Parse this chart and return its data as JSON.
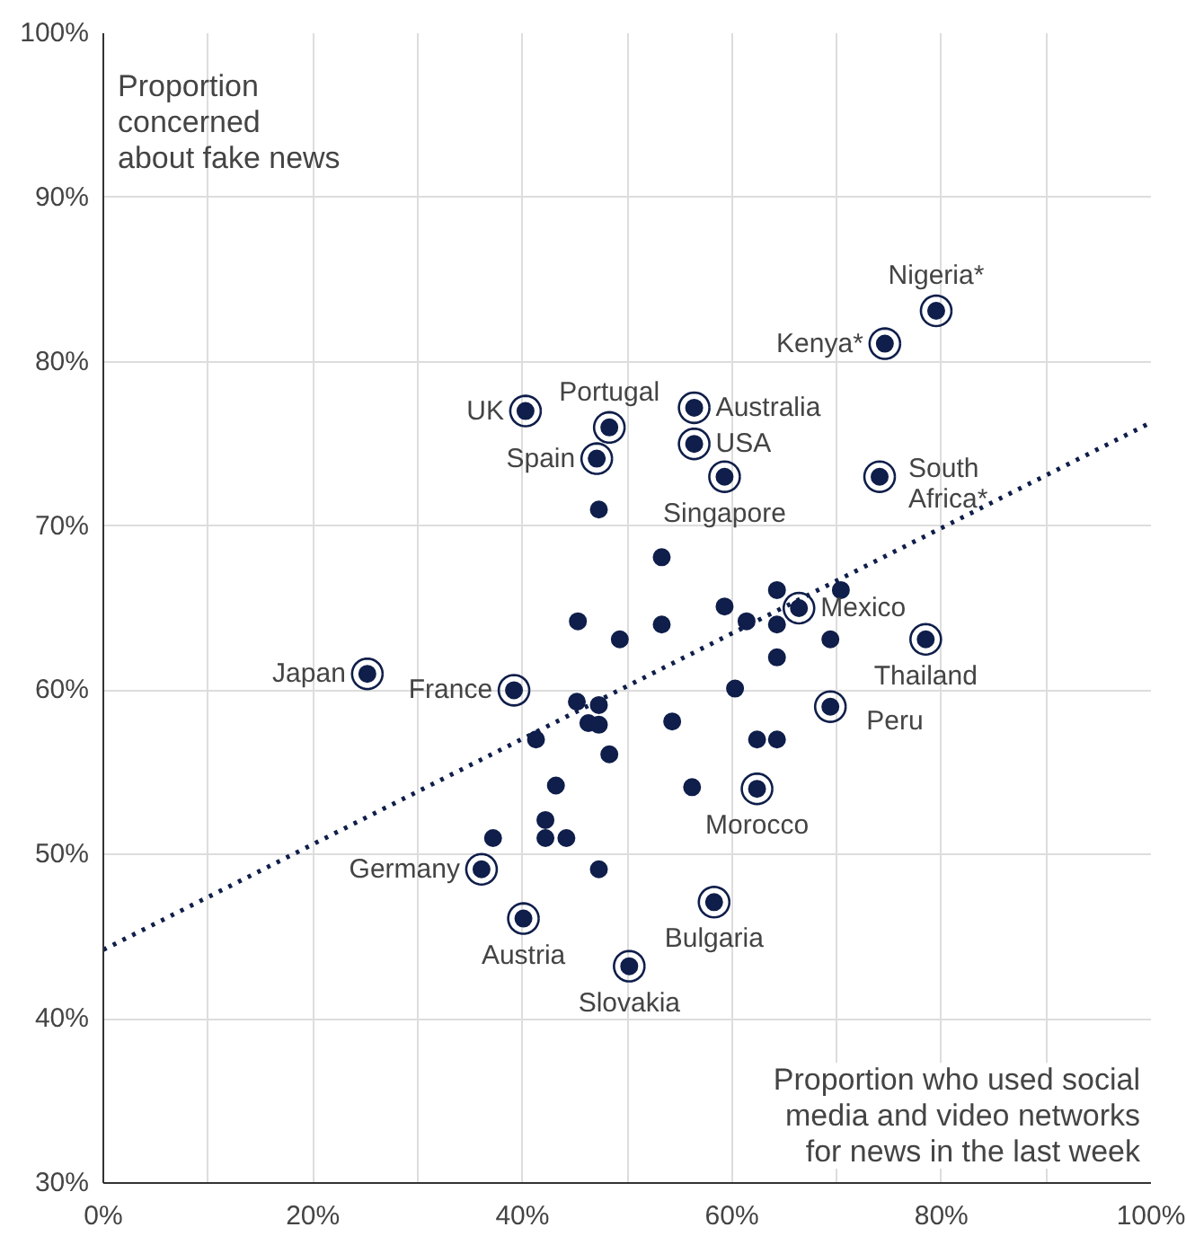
{
  "chart_data": {
    "type": "scatter",
    "xlabel": "Proportion who used social\nmedia and video networks\nfor news in the last week",
    "ylabel": "Proportion\nconcerned\nabout fake news",
    "xlim": [
      0,
      100
    ],
    "ylim": [
      30,
      100
    ],
    "xticks": [
      {
        "value": 0,
        "label": "0%"
      },
      {
        "value": 10,
        "label": null
      },
      {
        "value": 20,
        "label": "20%"
      },
      {
        "value": 30,
        "label": null
      },
      {
        "value": 40,
        "label": "40%"
      },
      {
        "value": 50,
        "label": null
      },
      {
        "value": 60,
        "label": "60%"
      },
      {
        "value": 70,
        "label": null
      },
      {
        "value": 80,
        "label": "80%"
      },
      {
        "value": 90,
        "label": null
      },
      {
        "value": 100,
        "label": "100%"
      }
    ],
    "yticks": [
      {
        "value": 30,
        "label": "30%"
      },
      {
        "value": 40,
        "label": "40%"
      },
      {
        "value": 50,
        "label": "50%"
      },
      {
        "value": 60,
        "label": "60%"
      },
      {
        "value": 70,
        "label": "70%"
      },
      {
        "value": 80,
        "label": "80%"
      },
      {
        "value": 90,
        "label": "90%"
      },
      {
        "value": 100,
        "label": "100%"
      }
    ],
    "grid": true,
    "series": [
      {
        "color": "#0f1e4a",
        "marker": "circle",
        "x": [
          47.3,
          53.3,
          45.3,
          53.3,
          49.3,
          45.2,
          47.3,
          46.3,
          47.3,
          54.3,
          41.3,
          48.3,
          43.2,
          56.2,
          37.2,
          42.2,
          42.2,
          44.2,
          47.3,
          62.4,
          64.3,
          59.3,
          64.3,
          70.4,
          61.4,
          64.3,
          69.4,
          64.3,
          60.3
        ],
        "values": [
          71.0,
          68.1,
          64.2,
          64.0,
          63.1,
          59.3,
          59.1,
          58.0,
          57.9,
          58.1,
          57.0,
          56.1,
          54.2,
          54.1,
          51.0,
          52.1,
          51.0,
          51.0,
          49.1,
          57.0,
          57.0,
          65.1,
          66.1,
          66.1,
          64.2,
          64.0,
          63.1,
          62.0,
          60.1
        ]
      },
      {
        "color": "#0f1e4a",
        "marker": "circle",
        "x": [
          40.3,
          48.3,
          47.1,
          56.4,
          56.4,
          59.3,
          79.5,
          74.6,
          74.1,
          66.4,
          78.5,
          69.4,
          62.4,
          25.2,
          39.2,
          36.1,
          40.1,
          50.2,
          58.3
        ],
        "values": [
          77.0,
          76.0,
          74.1,
          77.2,
          75.0,
          73.0,
          83.1,
          81.1,
          73.0,
          65.0,
          63.1,
          59.0,
          54.0,
          61.0,
          60.0,
          49.1,
          46.1,
          43.2,
          47.1
        ]
      },
      {
        "type": "line",
        "color": "#0f1e4a",
        "marker": "none",
        "line_style": "dotted",
        "x": [
          0,
          100
        ],
        "values": [
          44.2,
          76.3
        ]
      }
    ],
    "annotations": [
      {
        "text": "UK",
        "x": 40.3,
        "y": 77.0
      },
      {
        "text": "Portugal",
        "x": 48.3,
        "y": 76.0
      },
      {
        "text": "Spain",
        "x": 47.1,
        "y": 74.1
      },
      {
        "text": "Australia",
        "x": 56.4,
        "y": 77.2
      },
      {
        "text": "USA",
        "x": 56.4,
        "y": 75.0
      },
      {
        "text": "Singapore",
        "x": 59.3,
        "y": 73.0
      },
      {
        "text": "Nigeria*",
        "x": 79.5,
        "y": 83.1
      },
      {
        "text": "Kenya*",
        "x": 74.6,
        "y": 81.1
      },
      {
        "text": "South\nAfrica*",
        "x": 74.1,
        "y": 73.0
      },
      {
        "text": "Mexico",
        "x": 66.4,
        "y": 65.0
      },
      {
        "text": "Thailand",
        "x": 78.5,
        "y": 63.1
      },
      {
        "text": "Peru",
        "x": 69.4,
        "y": 59.0
      },
      {
        "text": "Morocco",
        "x": 62.4,
        "y": 54.0
      },
      {
        "text": "Japan",
        "x": 25.2,
        "y": 61.0
      },
      {
        "text": "France",
        "x": 39.2,
        "y": 60.0
      },
      {
        "text": "Germany",
        "x": 36.1,
        "y": 49.1
      },
      {
        "text": "Austria",
        "x": 40.1,
        "y": 46.1
      },
      {
        "text": "Slovakia",
        "x": 50.2,
        "y": 43.2
      },
      {
        "text": "Bulgaria",
        "x": 58.3,
        "y": 47.1
      }
    ]
  }
}
